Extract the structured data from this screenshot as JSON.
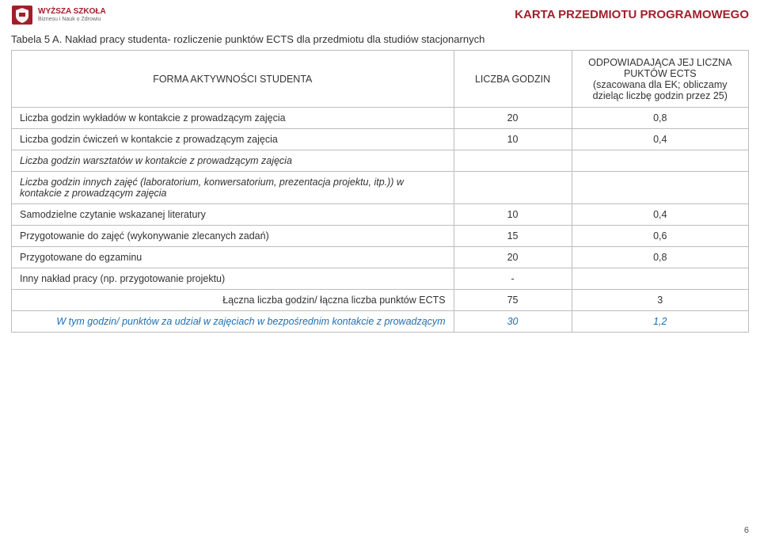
{
  "header": {
    "logo_line1": "WYŻSZA SZKOŁA",
    "logo_line2": "Biznesu i Nauk o Zdrowiu",
    "page_title": "KARTA PRZEDMIOTU PROGRAMOWEGO"
  },
  "caption": "Tabela 5 A. Nakład pracy studenta- rozliczenie punktów ECTS dla przedmiotu dla studiów stacjonarnych",
  "columns": {
    "activity": "FORMA AKTYWNOŚCI STUDENTA",
    "hours": "LICZBA GODZIN",
    "ects": "ODPOWIADAJĄCA JEJ LICZNA PUKTÓW ECTS\n(szacowana dla EK; obliczamy dzieląc liczbę godzin przez 25)"
  },
  "rows": [
    {
      "label": "Liczba godzin wykładów w kontakcie z prowadzącym zajęcia",
      "hours": "20",
      "ects": "0,8",
      "italic": false
    },
    {
      "label": "Liczba godzin ćwiczeń w kontakcie z prowadzącym zajęcia",
      "hours": "10",
      "ects": "0,4",
      "italic": false
    },
    {
      "label": "Liczba godzin warsztatów w kontakcie z prowadzącym zajęcia",
      "hours": "",
      "ects": "",
      "italic": true
    },
    {
      "label": "Liczba godzin innych zajęć (laboratorium, konwersatorium, prezentacja projektu, itp.)) w kontakcie  z prowadzącym zajęcia",
      "hours": "",
      "ects": "",
      "italic": true
    },
    {
      "label": "Samodzielne czytanie wskazanej literatury",
      "hours": "10",
      "ects": "0,4",
      "italic": false
    },
    {
      "label": "Przygotowanie do zajęć (wykonywanie zlecanych zadań)",
      "hours": "15",
      "ects": "0,6",
      "italic": false
    },
    {
      "label": "Przygotowane do egzaminu",
      "hours": "20",
      "ects": "0,8",
      "italic": false
    },
    {
      "label": "Inny nakład pracy (np. przygotowanie projektu)",
      "hours": "-",
      "ects": "",
      "italic": false
    }
  ],
  "sum_row": {
    "label": "Łączna liczba godzin/ łączna liczba punktów ECTS",
    "hours": "75",
    "ects": "3"
  },
  "contact_row": {
    "label": "W tym godzin/ punktów za udział w zajęciach w bezpośrednim kontakcie z prowadzącym",
    "hours": "30",
    "ects": "1,2"
  },
  "page_number": "6",
  "colors": {
    "accent": "#a01f2b",
    "border": "#bdbdbd",
    "blue": "#1f6fb2",
    "text": "#333333",
    "background": "#ffffff"
  }
}
